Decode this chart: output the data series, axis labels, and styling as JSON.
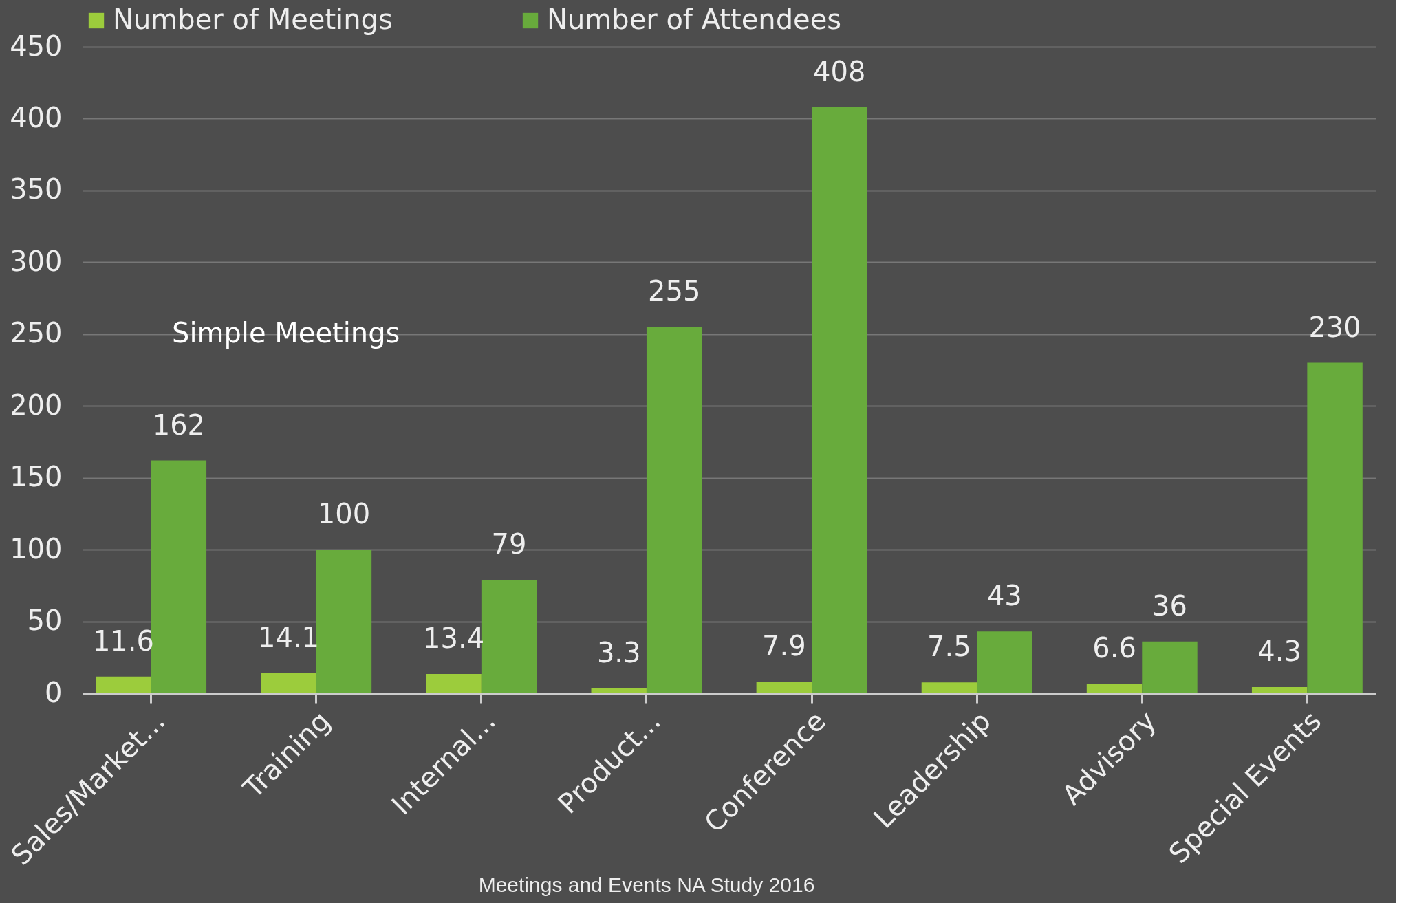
{
  "chart_data": {
    "type": "bar",
    "categories": [
      "Sales/Market...",
      "Training",
      "Internal...",
      "Product...",
      "Conference",
      "Leadership",
      "Advisory",
      "Special Events"
    ],
    "series": [
      {
        "name": "Number of Meetings",
        "color": "#9ccc3c",
        "values": [
          11.6,
          14.1,
          13.4,
          3.3,
          7.9,
          7.5,
          6.6,
          4.3
        ]
      },
      {
        "name": "Number of Attendees",
        "color": "#68ab3c",
        "values": [
          162,
          100,
          79,
          255,
          408,
          43,
          36,
          230
        ]
      }
    ],
    "ylim": [
      0,
      450
    ],
    "yticks": [
      0,
      50,
      100,
      150,
      200,
      250,
      300,
      350,
      400,
      450
    ],
    "grid": "y",
    "legend": "top",
    "data_labels": true,
    "annotations": [
      "Simple Meetings",
      "Meetings and Events NA Study 2016"
    ]
  }
}
